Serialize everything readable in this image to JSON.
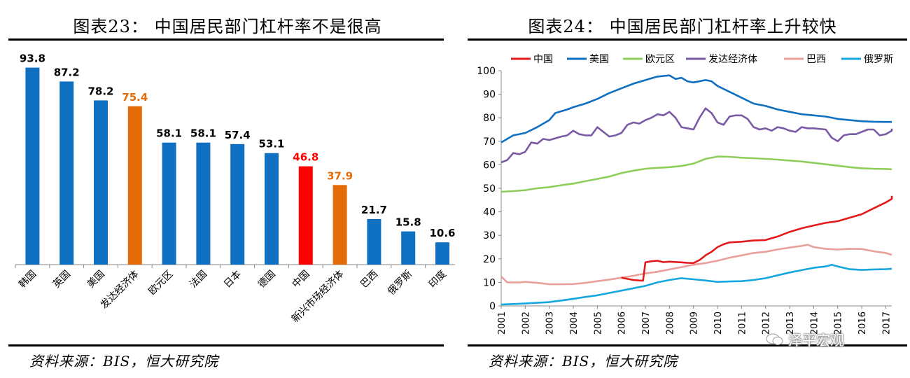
{
  "left_panel": {
    "title": "图表23：  中国居民部门杠杆率不是很高",
    "source": "资料来源：BIS，恒大研究院"
  },
  "right_panel": {
    "title": "图表24：  中国居民部门杠杆率上升较快",
    "source": "资料来源：BIS，恒大研究院"
  },
  "watermark": "泽平宏观",
  "colors": {
    "blue": "#0f6fc0",
    "orange": "#e36c09",
    "red": "#ff0000"
  },
  "chart_data": [
    {
      "type": "bar",
      "title": "图表23：  中国居民部门杠杆率不是很高",
      "categories": [
        "韩国",
        "英国",
        "美国",
        "发达经济体",
        "欧元区",
        "法国",
        "日本",
        "德国",
        "中国",
        "新兴市场经济体",
        "巴西",
        "俄罗斯",
        "印度"
      ],
      "values": [
        93.8,
        87.2,
        78.2,
        75.4,
        58.1,
        58.1,
        57.4,
        53.1,
        46.8,
        37.9,
        21.7,
        15.8,
        10.6
      ],
      "bar_colors": [
        "#0f6fc0",
        "#0f6fc0",
        "#0f6fc0",
        "#e36c09",
        "#0f6fc0",
        "#0f6fc0",
        "#0f6fc0",
        "#0f6fc0",
        "#ff0000",
        "#e36c09",
        "#0f6fc0",
        "#0f6fc0",
        "#0f6fc0"
      ],
      "label_colors": [
        "#000000",
        "#000000",
        "#000000",
        "#e36c09",
        "#000000",
        "#000000",
        "#000000",
        "#000000",
        "#ff0000",
        "#e36c09",
        "#000000",
        "#000000",
        "#000000"
      ],
      "ylim": [
        0,
        100
      ],
      "grid": false
    },
    {
      "type": "line",
      "title": "图表24：  中国居民部门杠杆率上升较快",
      "ylim": [
        0,
        100
      ],
      "yticks": [
        0,
        10,
        20,
        30,
        40,
        50,
        60,
        70,
        80,
        90,
        100
      ],
      "xlim": [
        2001,
        2017.25
      ],
      "xticks": [
        "2001",
        "2002",
        "2003",
        "2004",
        "2005",
        "2006",
        "2007",
        "2008",
        "2009",
        "2010",
        "2011",
        "2012",
        "2013",
        "2014",
        "2015",
        "2016",
        "2017"
      ],
      "legend_position": "top",
      "grid": false,
      "series": [
        {
          "name": "中国",
          "color": "#e31a1c",
          "points": [
            [
              2006,
              12
            ],
            [
              2006.25,
              11.5
            ],
            [
              2006.5,
              11
            ],
            [
              2006.75,
              10.8
            ],
            [
              2006.9,
              10.7
            ],
            [
              2007,
              18.5
            ],
            [
              2007.25,
              19
            ],
            [
              2007.5,
              19.2
            ],
            [
              2007.75,
              18.6
            ],
            [
              2008,
              18.8
            ],
            [
              2008.5,
              18.5
            ],
            [
              2008.75,
              18.3
            ],
            [
              2009,
              18.2
            ],
            [
              2009.25,
              19.5
            ],
            [
              2009.5,
              21.5
            ],
            [
              2009.75,
              23
            ],
            [
              2010,
              25
            ],
            [
              2010.25,
              26.2
            ],
            [
              2010.5,
              27
            ],
            [
              2011,
              27.3
            ],
            [
              2011.5,
              27.8
            ],
            [
              2012,
              28
            ],
            [
              2012.5,
              29.5
            ],
            [
              2013,
              31.5
            ],
            [
              2013.5,
              33
            ],
            [
              2014,
              34.2
            ],
            [
              2014.5,
              35.3
            ],
            [
              2015,
              36
            ],
            [
              2015.5,
              37.5
            ],
            [
              2016,
              39
            ],
            [
              2016.5,
              41.5
            ],
            [
              2017,
              44
            ],
            [
              2017.25,
              45.5
            ],
            [
              2017.5,
              46.8
            ]
          ]
        },
        {
          "name": "美国",
          "color": "#0f6fc0",
          "points": [
            [
              2001,
              69.5
            ],
            [
              2001.5,
              72.5
            ],
            [
              2002,
              73.5
            ],
            [
              2002.5,
              76
            ],
            [
              2003,
              79
            ],
            [
              2003.25,
              82
            ],
            [
              2003.75,
              83.5
            ],
            [
              2004,
              84.5
            ],
            [
              2004.5,
              86
            ],
            [
              2005,
              88
            ],
            [
              2005.5,
              90.5
            ],
            [
              2006,
              92.5
            ],
            [
              2006.5,
              94.5
            ],
            [
              2007,
              96
            ],
            [
              2007.5,
              97.5
            ],
            [
              2008,
              98
            ],
            [
              2008.25,
              96.5
            ],
            [
              2008.5,
              97
            ],
            [
              2008.75,
              95.5
            ],
            [
              2009,
              95
            ],
            [
              2009.5,
              96
            ],
            [
              2009.75,
              95.5
            ],
            [
              2010,
              93.5
            ],
            [
              2010.5,
              91
            ],
            [
              2011,
              88.5
            ],
            [
              2011.5,
              86
            ],
            [
              2012,
              85
            ],
            [
              2012.5,
              83.5
            ],
            [
              2013,
              82.5
            ],
            [
              2013.5,
              81.5
            ],
            [
              2014,
              81
            ],
            [
              2014.5,
              80.5
            ],
            [
              2015,
              79.5
            ],
            [
              2015.5,
              79
            ],
            [
              2016,
              78.5
            ],
            [
              2016.5,
              78.3
            ],
            [
              2017,
              78.2
            ],
            [
              2017.5,
              78.2
            ]
          ]
        },
        {
          "name": "欧元区",
          "color": "#8fce5a",
          "points": [
            [
              2001,
              48.5
            ],
            [
              2001.5,
              48.8
            ],
            [
              2002,
              49.2
            ],
            [
              2002.5,
              50
            ],
            [
              2003,
              50.5
            ],
            [
              2003.5,
              51.3
            ],
            [
              2004,
              52
            ],
            [
              2004.5,
              53
            ],
            [
              2005,
              54
            ],
            [
              2005.5,
              55
            ],
            [
              2006,
              56.5
            ],
            [
              2006.5,
              57.5
            ],
            [
              2007,
              58.3
            ],
            [
              2007.5,
              58.7
            ],
            [
              2008,
              59
            ],
            [
              2008.5,
              59.5
            ],
            [
              2009,
              60.5
            ],
            [
              2009.5,
              62.5
            ],
            [
              2010,
              63.5
            ],
            [
              2010.5,
              63.4
            ],
            [
              2011,
              63
            ],
            [
              2011.5,
              62.8
            ],
            [
              2012,
              62.5
            ],
            [
              2012.5,
              62.2
            ],
            [
              2013,
              61.8
            ],
            [
              2013.5,
              61.4
            ],
            [
              2014,
              60.8
            ],
            [
              2014.5,
              60.2
            ],
            [
              2015,
              59.6
            ],
            [
              2015.5,
              59
            ],
            [
              2016,
              58.5
            ],
            [
              2016.5,
              58.3
            ],
            [
              2017,
              58.2
            ],
            [
              2017.5,
              58.1
            ]
          ]
        },
        {
          "name": "发达经济体",
          "color": "#7a5aa5",
          "points": [
            [
              2001,
              61
            ],
            [
              2001.25,
              62
            ],
            [
              2001.5,
              65
            ],
            [
              2001.75,
              64.5
            ],
            [
              2002,
              65.5
            ],
            [
              2002.25,
              69.5
            ],
            [
              2002.5,
              69
            ],
            [
              2002.75,
              71
            ],
            [
              2003,
              70.5
            ],
            [
              2003.5,
              72
            ],
            [
              2003.75,
              72.5
            ],
            [
              2004,
              74.5
            ],
            [
              2004.25,
              73
            ],
            [
              2004.5,
              72.5
            ],
            [
              2004.75,
              72.5
            ],
            [
              2005,
              76
            ],
            [
              2005.25,
              74
            ],
            [
              2005.5,
              72
            ],
            [
              2005.75,
              72.5
            ],
            [
              2006,
              73.5
            ],
            [
              2006.25,
              77
            ],
            [
              2006.5,
              78
            ],
            [
              2006.75,
              77.5
            ],
            [
              2007,
              79
            ],
            [
              2007.25,
              80
            ],
            [
              2007.5,
              81.5
            ],
            [
              2007.75,
              81
            ],
            [
              2008,
              82.5
            ],
            [
              2008.25,
              80
            ],
            [
              2008.5,
              76
            ],
            [
              2008.75,
              75.5
            ],
            [
              2009,
              75
            ],
            [
              2009.25,
              80
            ],
            [
              2009.5,
              84
            ],
            [
              2009.75,
              82
            ],
            [
              2010,
              78
            ],
            [
              2010.25,
              77
            ],
            [
              2010.5,
              80.5
            ],
            [
              2010.75,
              81
            ],
            [
              2011,
              81
            ],
            [
              2011.25,
              79.5
            ],
            [
              2011.5,
              76
            ],
            [
              2011.75,
              75
            ],
            [
              2012,
              75.5
            ],
            [
              2012.25,
              74.5
            ],
            [
              2012.5,
              76
            ],
            [
              2012.75,
              75.5
            ],
            [
              2013,
              74.5
            ],
            [
              2013.25,
              74
            ],
            [
              2013.5,
              76
            ],
            [
              2013.75,
              75.5
            ],
            [
              2014,
              75.5
            ],
            [
              2014.5,
              75
            ],
            [
              2014.75,
              71.5
            ],
            [
              2015,
              70
            ],
            [
              2015.25,
              72.5
            ],
            [
              2015.5,
              73
            ],
            [
              2015.75,
              73
            ],
            [
              2016,
              74
            ],
            [
              2016.25,
              75
            ],
            [
              2016.5,
              75
            ],
            [
              2016.75,
              72.5
            ],
            [
              2017,
              73
            ],
            [
              2017.25,
              74.5
            ],
            [
              2017.5,
              75.4
            ]
          ]
        },
        {
          "name": "巴西",
          "color": "#e8a09a",
          "points": [
            [
              2001,
              12.5
            ],
            [
              2001.25,
              10
            ],
            [
              2001.75,
              10
            ],
            [
              2002,
              10.2
            ],
            [
              2002.5,
              9.8
            ],
            [
              2003,
              9.2
            ],
            [
              2003.5,
              9.2
            ],
            [
              2004,
              9.3
            ],
            [
              2004.5,
              9.8
            ],
            [
              2005,
              10.5
            ],
            [
              2005.5,
              11.2
            ],
            [
              2006,
              12
            ],
            [
              2006.5,
              12.8
            ],
            [
              2007,
              13.8
            ],
            [
              2007.5,
              14.5
            ],
            [
              2008,
              15.5
            ],
            [
              2008.5,
              16.5
            ],
            [
              2009,
              17.5
            ],
            [
              2009.5,
              18.2
            ],
            [
              2010,
              19.2
            ],
            [
              2010.5,
              20.5
            ],
            [
              2011,
              21.5
            ],
            [
              2011.5,
              22.5
            ],
            [
              2012,
              23
            ],
            [
              2012.5,
              24
            ],
            [
              2013,
              24.8
            ],
            [
              2013.5,
              25.5
            ],
            [
              2013.75,
              26
            ],
            [
              2014,
              25
            ],
            [
              2014.5,
              24.3
            ],
            [
              2015,
              24
            ],
            [
              2015.5,
              24.3
            ],
            [
              2016,
              24.2
            ],
            [
              2016.5,
              23.2
            ],
            [
              2017,
              22.5
            ],
            [
              2017.5,
              21.7
            ]
          ]
        },
        {
          "name": "俄罗斯",
          "color": "#15a7dd",
          "points": [
            [
              2001,
              0.6
            ],
            [
              2001.5,
              0.8
            ],
            [
              2002,
              1
            ],
            [
              2002.5,
              1.3
            ],
            [
              2003,
              1.6
            ],
            [
              2003.5,
              2.3
            ],
            [
              2004,
              3
            ],
            [
              2004.5,
              3.8
            ],
            [
              2005,
              4.5
            ],
            [
              2005.5,
              5.5
            ],
            [
              2006,
              6.5
            ],
            [
              2006.5,
              7.5
            ],
            [
              2007,
              8.5
            ],
            [
              2007.5,
              10
            ],
            [
              2008,
              11
            ],
            [
              2008.5,
              11.8
            ],
            [
              2009,
              11.3
            ],
            [
              2009.5,
              10.8
            ],
            [
              2010,
              10.2
            ],
            [
              2010.5,
              10.4
            ],
            [
              2011,
              10.5
            ],
            [
              2011.5,
              11
            ],
            [
              2012,
              11.8
            ],
            [
              2012.5,
              13
            ],
            [
              2013,
              14.2
            ],
            [
              2013.5,
              15.2
            ],
            [
              2014,
              16.2
            ],
            [
              2014.5,
              16.8
            ],
            [
              2014.75,
              17.5
            ],
            [
              2015,
              16.8
            ],
            [
              2015.5,
              15.6
            ],
            [
              2016,
              15.3
            ],
            [
              2016.5,
              15.5
            ],
            [
              2017,
              15.6
            ],
            [
              2017.5,
              15.8
            ]
          ]
        }
      ]
    }
  ]
}
